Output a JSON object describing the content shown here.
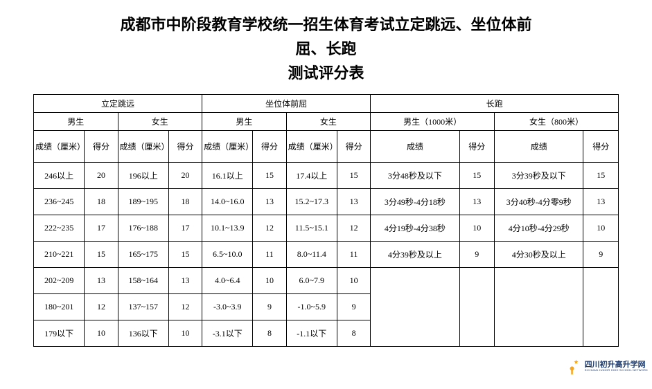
{
  "title": {
    "line1": "成都市中阶段教育学校统一招生体育考试立定跳远、坐位体前",
    "line2": "屈、长跑",
    "line3": "测试评分表"
  },
  "table": {
    "groupHeaders": {
      "longjump": "立定跳远",
      "sitreach": "坐位体前屈",
      "running": "长跑"
    },
    "genderHeaders": {
      "male": "男生",
      "female": "女生",
      "male1000": "男生（1000米）",
      "female800": "女生（800米）"
    },
    "columnHeaders": {
      "scoreCm": "成绩（厘米）",
      "points": "得分",
      "score": "成绩"
    },
    "rows": [
      {
        "lj_m_val": "246以上",
        "lj_m_pts": "20",
        "lj_f_val": "196以上",
        "lj_f_pts": "20",
        "sr_m_val": "16.1以上",
        "sr_m_pts": "15",
        "sr_f_val": "17.4以上",
        "sr_f_pts": "15",
        "rn_m_val": "3分48秒及以下",
        "rn_m_pts": "15",
        "rn_f_val": "3分39秒及以下",
        "rn_f_pts": "15"
      },
      {
        "lj_m_val": "236~245",
        "lj_m_pts": "18",
        "lj_f_val": "189~195",
        "lj_f_pts": "18",
        "sr_m_val": "14.0~16.0",
        "sr_m_pts": "13",
        "sr_f_val": "15.2~17.3",
        "sr_f_pts": "13",
        "rn_m_val": "3分49秒-4分18秒",
        "rn_m_pts": "13",
        "rn_f_val": "3分40秒-4分零9秒",
        "rn_f_pts": "13"
      },
      {
        "lj_m_val": "222~235",
        "lj_m_pts": "17",
        "lj_f_val": "176~188",
        "lj_f_pts": "17",
        "sr_m_val": "10.1~13.9",
        "sr_m_pts": "12",
        "sr_f_val": "11.5~15.1",
        "sr_f_pts": "12",
        "rn_m_val": "4分19秒-4分38秒",
        "rn_m_pts": "10",
        "rn_f_val": "4分10秒-4分29秒",
        "rn_f_pts": "10"
      },
      {
        "lj_m_val": "210~221",
        "lj_m_pts": "15",
        "lj_f_val": "165~175",
        "lj_f_pts": "15",
        "sr_m_val": "6.5~10.0",
        "sr_m_pts": "11",
        "sr_f_val": "8.0~11.4",
        "sr_f_pts": "11",
        "rn_m_val": "4分39秒及以上",
        "rn_m_pts": "9",
        "rn_f_val": "4分30秒及以上",
        "rn_f_pts": "9"
      },
      {
        "lj_m_val": "202~209",
        "lj_m_pts": "13",
        "lj_f_val": "158~164",
        "lj_f_pts": "13",
        "sr_m_val": "4.0~6.4",
        "sr_m_pts": "10",
        "sr_f_val": "6.0~7.9",
        "sr_f_pts": "10",
        "rn_m_val": "",
        "rn_m_pts": "",
        "rn_f_val": "",
        "rn_f_pts": ""
      },
      {
        "lj_m_val": "180~201",
        "lj_m_pts": "12",
        "lj_f_val": "137~157",
        "lj_f_pts": "12",
        "sr_m_val": "-3.0~3.9",
        "sr_m_pts": "9",
        "sr_f_val": "-1.0~5.9",
        "sr_f_pts": "9",
        "rn_m_val": "",
        "rn_m_pts": "",
        "rn_f_val": "",
        "rn_f_pts": ""
      },
      {
        "lj_m_val": "179以下",
        "lj_m_pts": "10",
        "lj_f_val": "136以下",
        "lj_f_pts": "10",
        "sr_m_val": "-3.1以下",
        "sr_m_pts": "8",
        "sr_f_val": "-1.1以下",
        "sr_f_pts": "8",
        "rn_m_val": "",
        "rn_m_pts": "",
        "rn_f_val": "",
        "rn_f_pts": ""
      }
    ],
    "runningRowCount": 4,
    "styling": {
      "border_color": "#000000",
      "text_color": "#000000",
      "background_color": "#ffffff",
      "header_fontsize": 12,
      "body_fontsize": 12,
      "title_fontsize": 22
    }
  },
  "watermark": {
    "cn": "四川初升高升学网",
    "en": "SICHUAN JUNIOR HIGH SCHOOL NETWORK",
    "icon_colors": {
      "crescent": "#1a3a6e",
      "star": "#f5a623",
      "figure": "#f5a623"
    }
  }
}
